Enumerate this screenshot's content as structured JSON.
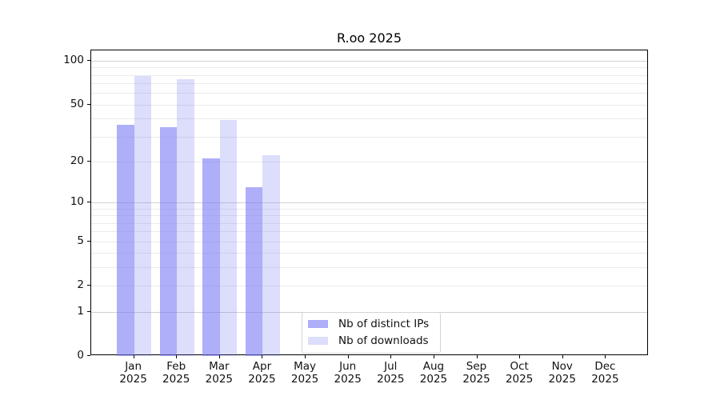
{
  "chart_data": {
    "type": "bar",
    "title": "R.oo 2025",
    "categories": [
      "Jan 2025",
      "Feb 2025",
      "Mar 2025",
      "Apr 2025",
      "May 2025",
      "Jun 2025",
      "Jul 2025",
      "Aug 2025",
      "Sep 2025",
      "Oct 2025",
      "Nov 2025",
      "Dec 2025"
    ],
    "series": [
      {
        "name": "Nb of distinct IPs",
        "color": "#7878F5",
        "alpha": 0.6,
        "values": [
          36,
          35,
          21,
          13,
          null,
          null,
          null,
          null,
          null,
          null,
          null,
          null
        ]
      },
      {
        "name": "Nb of downloads",
        "color": "#7878F5",
        "alpha": 0.25,
        "values": [
          79,
          75,
          39,
          22,
          null,
          null,
          null,
          null,
          null,
          null,
          null,
          null
        ]
      }
    ],
    "xlabel": "",
    "ylabel": "",
    "yscale": "log1p",
    "ylim": [
      0,
      118
    ],
    "yticks": [
      0,
      1,
      2,
      5,
      10,
      20,
      50,
      100
    ],
    "grid": {
      "major_values": [
        1,
        10,
        100
      ],
      "minor_values": [
        2,
        3,
        4,
        5,
        6,
        7,
        8,
        9,
        20,
        30,
        40,
        50,
        60,
        70,
        80,
        90
      ],
      "major_color": "#d0d0d0",
      "minor_color": "#ebebeb"
    },
    "legend_position": "lower center",
    "background": "#ffffff",
    "spine_color": "#000000",
    "text_color": "#111111"
  }
}
